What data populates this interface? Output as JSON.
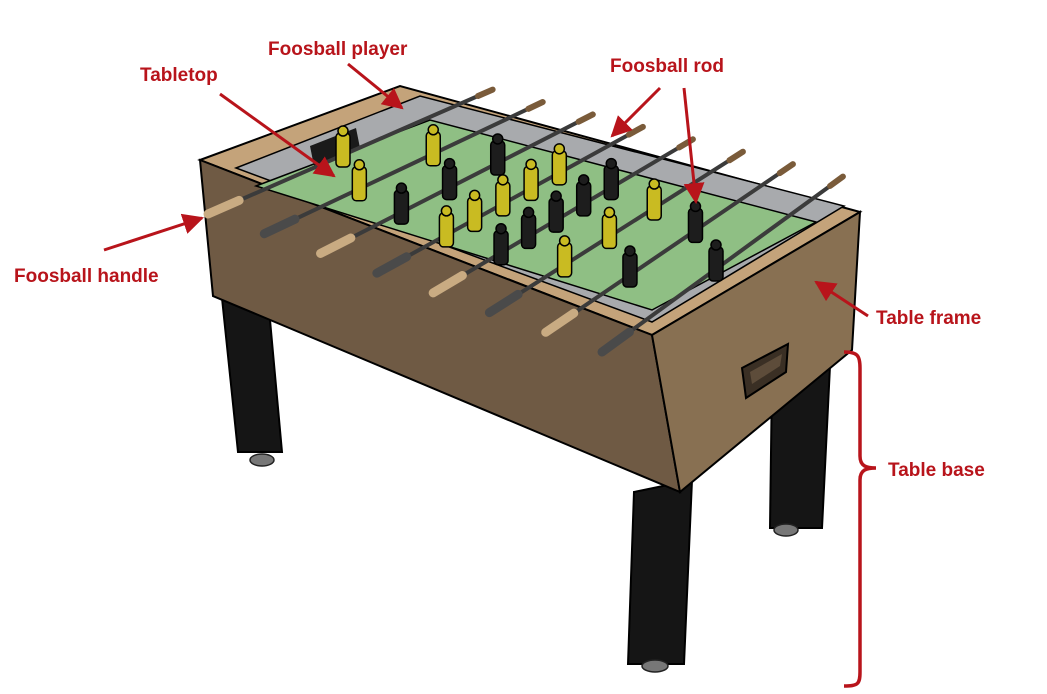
{
  "diagram": {
    "labels": {
      "foosball_player": "Foosball player",
      "tabletop": "Tabletop",
      "foosball_rod": "Foosball rod",
      "foosball_handle": "Foosball handle",
      "table_frame": "Table frame",
      "table_base": "Table base"
    },
    "colors": {
      "label_red": "#b8141b",
      "frame_dark": "#6f5a44",
      "frame_light": "#c4a37a",
      "field_green": "#8fbf84",
      "wall_gray": "#a8aaad",
      "leg_black": "#151515",
      "player_yellow": "#c9bb22",
      "player_black": "#1d1d1d",
      "handle_tan": "#c9ab82"
    }
  }
}
